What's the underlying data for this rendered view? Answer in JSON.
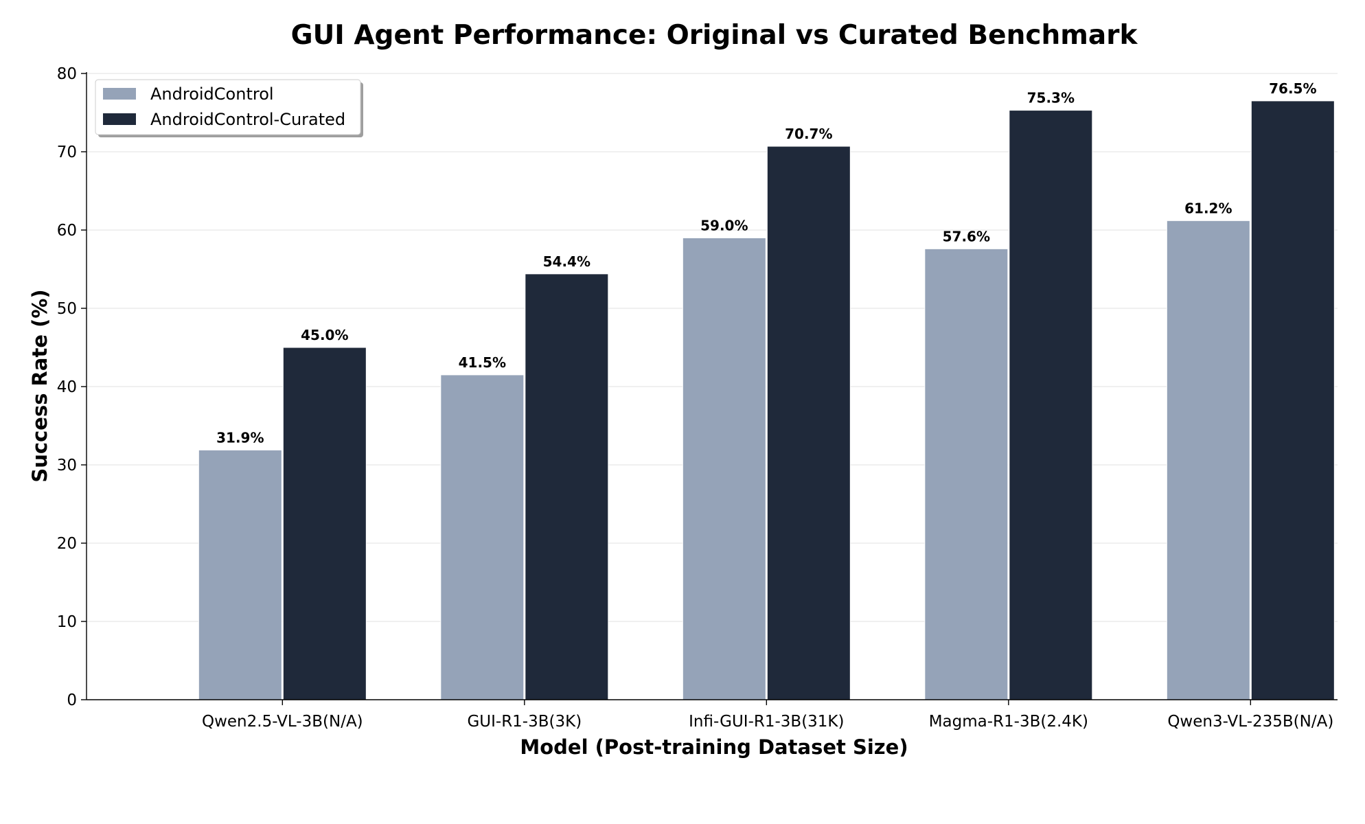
{
  "chart_data": {
    "type": "bar",
    "title": "GUI Agent Performance: Original vs Curated Benchmark",
    "xlabel": "Model (Post-training Dataset Size)",
    "ylabel": "Success Rate (%)",
    "ylim": [
      0,
      80
    ],
    "yticks": [
      "0",
      "10",
      "20",
      "30",
      "40",
      "50",
      "60",
      "70",
      "80"
    ],
    "grid": true,
    "legend_position": "top-left",
    "categories": [
      "Qwen2.5-VL-3B(N/A)",
      "GUI-R1-3B(3K)",
      "Infi-GUI-R1-3B(31K)",
      "Magma-R1-3B(2.4K)",
      "Qwen3-VL-235B(N/A)"
    ],
    "series": [
      {
        "name": "AndroidControl",
        "color": "#95a3b8",
        "values": [
          31.9,
          41.5,
          59.0,
          57.6,
          61.2
        ],
        "labels": [
          "31.9%",
          "41.5%",
          "59.0%",
          "57.6%",
          "61.2%"
        ]
      },
      {
        "name": "AndroidControl-Curated",
        "color": "#1f293a",
        "values": [
          45.0,
          54.4,
          70.7,
          75.3,
          76.5
        ],
        "labels": [
          "45.0%",
          "54.4%",
          "70.7%",
          "75.3%",
          "76.5%"
        ]
      }
    ]
  }
}
